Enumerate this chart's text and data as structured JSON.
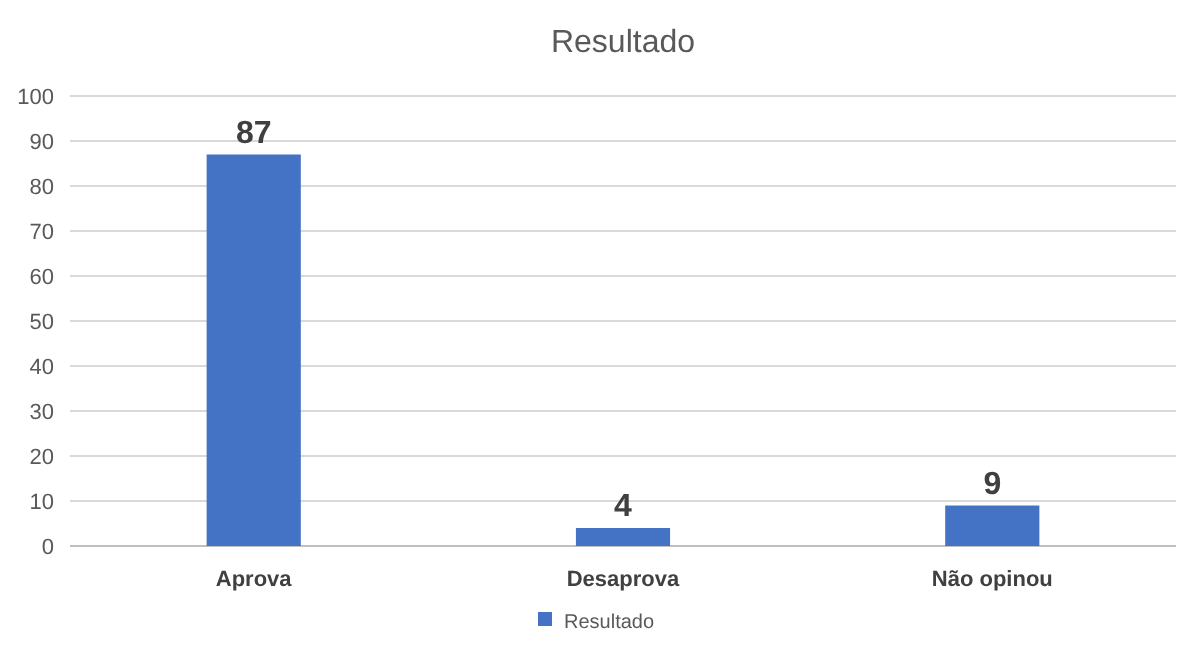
{
  "chart_data": {
    "type": "bar",
    "title": "Resultado",
    "categories": [
      "Aprova",
      "Desaprova",
      "Não opinou"
    ],
    "series": [
      {
        "name": "Resultado",
        "color": "#4472c4",
        "values": [
          87,
          4,
          9
        ]
      }
    ],
    "ylim": [
      0,
      100
    ],
    "yticks": [
      0,
      10,
      20,
      30,
      40,
      50,
      60,
      70,
      80,
      90,
      100
    ],
    "grid": "y",
    "data_labels": true,
    "legend": "bottom"
  }
}
